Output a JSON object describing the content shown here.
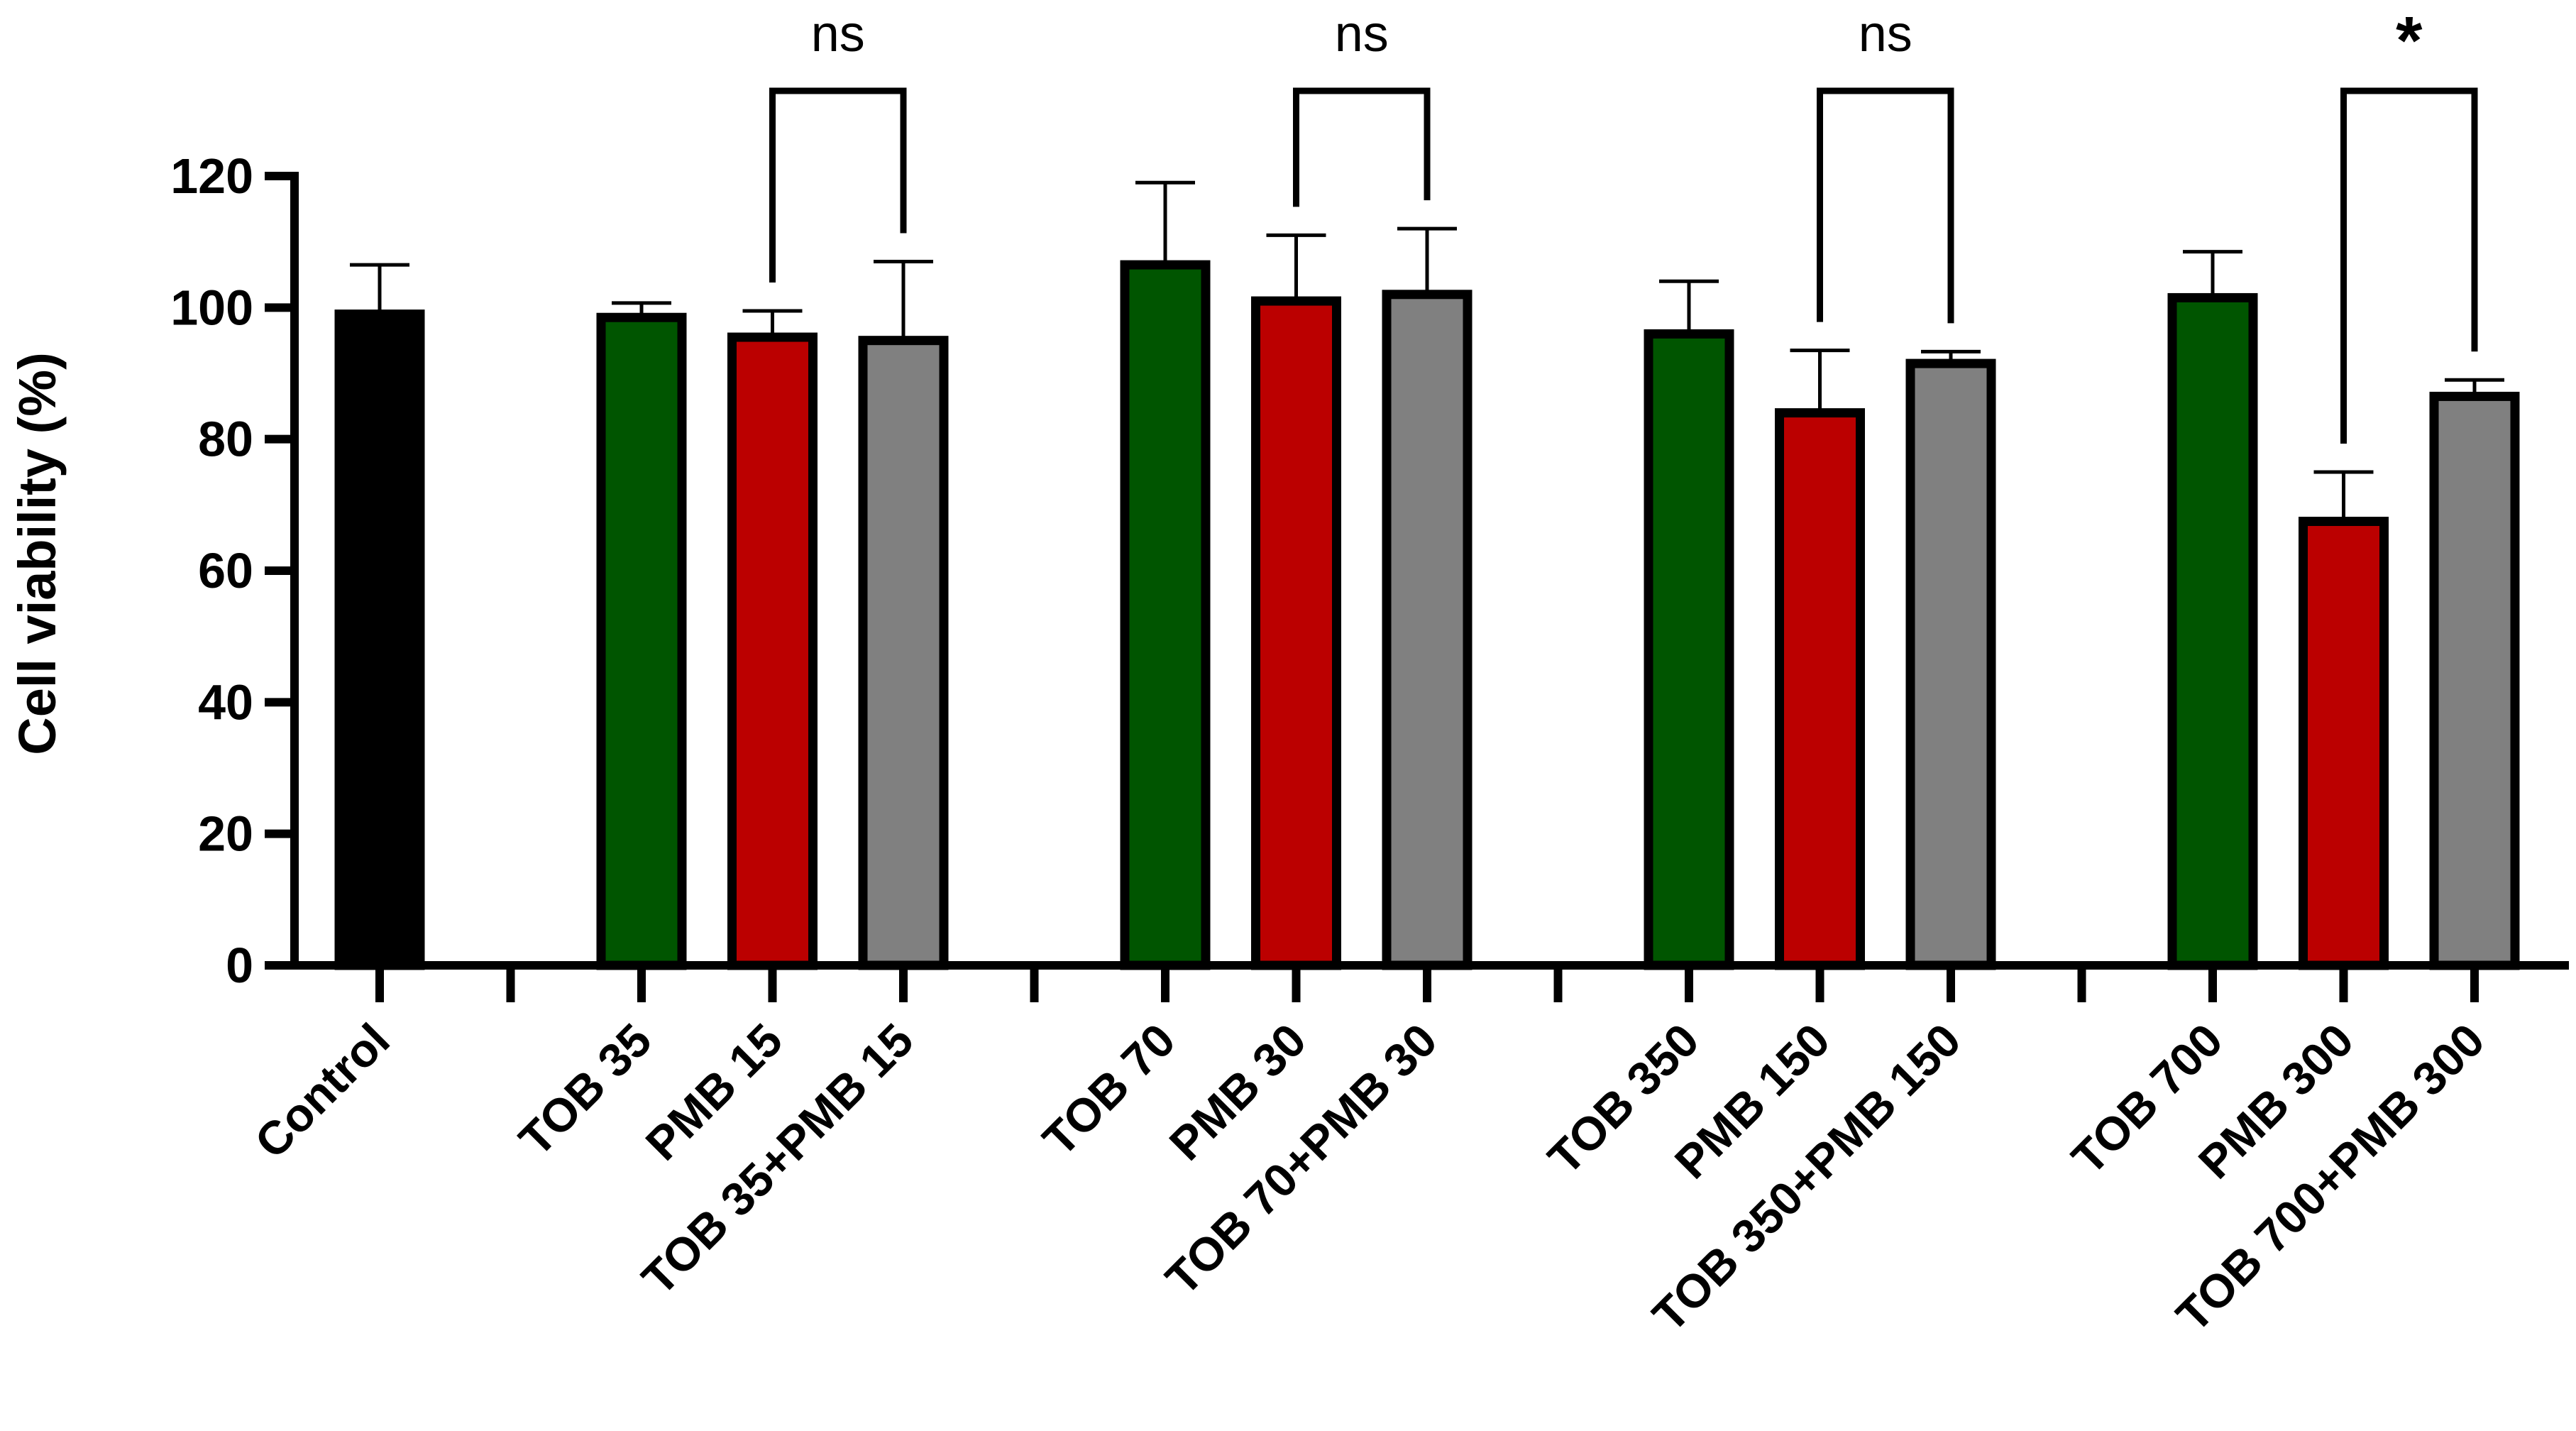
{
  "chart_data": {
    "type": "bar",
    "title": "",
    "xlabel": "",
    "ylabel": "Cell viability (%)",
    "ylim": [
      0,
      120
    ],
    "yticks": [
      0,
      20,
      40,
      60,
      80,
      100,
      120
    ],
    "ytick_labels": [
      "0",
      "20",
      "40",
      "60",
      "80",
      "100",
      "120"
    ],
    "grid": false,
    "legend": "none",
    "bars": [
      {
        "label": "Control",
        "value": 99,
        "error": 7.5,
        "color": "#000000"
      },
      {
        "label": "",
        "value": null,
        "error": null,
        "color": ""
      },
      {
        "label": "TOB 35",
        "value": 98.5,
        "error": 2.2,
        "color": "#005500"
      },
      {
        "label": "PMB 15",
        "value": 95.5,
        "error": 4,
        "color": "#bb0000"
      },
      {
        "label": "TOB 35+PMB 15",
        "value": 95,
        "error": 12,
        "color": "#808080"
      },
      {
        "label": "",
        "value": null,
        "error": null,
        "color": ""
      },
      {
        "label": "TOB 70",
        "value": 106.5,
        "error": 12.5,
        "color": "#005500"
      },
      {
        "label": "PMB 30",
        "value": 101,
        "error": 10,
        "color": "#bb0000"
      },
      {
        "label": "TOB 70+PMB 30",
        "value": 102,
        "error": 10,
        "color": "#808080"
      },
      {
        "label": "",
        "value": null,
        "error": null,
        "color": ""
      },
      {
        "label": "TOB 350",
        "value": 96,
        "error": 8,
        "color": "#005500"
      },
      {
        "label": "PMB 150",
        "value": 84,
        "error": 9.5,
        "color": "#bb0000"
      },
      {
        "label": "TOB 350+PMB 150",
        "value": 91.5,
        "error": 1.8,
        "color": "#808080"
      },
      {
        "label": "",
        "value": null,
        "error": null,
        "color": ""
      },
      {
        "label": "TOB 700",
        "value": 101.5,
        "error": 7,
        "color": "#005500"
      },
      {
        "label": "PMB 300",
        "value": 67.5,
        "error": 7.5,
        "color": "#bb0000"
      },
      {
        "label": "TOB 700+PMB 300",
        "value": 86.5,
        "error": 2.5,
        "color": "#808080"
      }
    ],
    "annotations": [
      {
        "text": "ns",
        "from": "PMB 15",
        "to": "TOB 35+PMB 15"
      },
      {
        "text": "ns",
        "from": "PMB 30",
        "to": "TOB 70+PMB 30"
      },
      {
        "text": "ns",
        "from": "PMB 150",
        "to": "TOB 350+PMB 150"
      },
      {
        "text": "*",
        "from": "PMB 300",
        "to": "TOB 700+PMB 300"
      }
    ]
  }
}
